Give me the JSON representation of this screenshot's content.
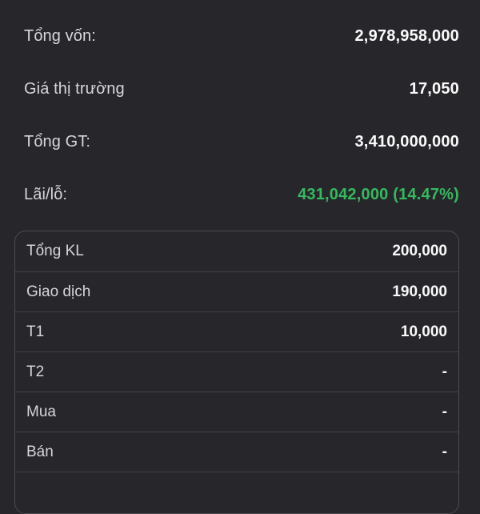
{
  "colors": {
    "bg": "#26262b",
    "label": "#d6d6da",
    "value": "#fafafa",
    "green": "#35b95f",
    "border": "#4a4a50",
    "divider": "#414147"
  },
  "summary": {
    "rows": [
      {
        "label": "Tổng vốn:",
        "value": "2,978,958,000"
      },
      {
        "label": "Giá thị trường",
        "value": "17,050"
      },
      {
        "label": "Tổng GT:",
        "value": "3,410,000,000"
      },
      {
        "label": "Lãi/lỗ:",
        "value": "431,042,000 (14.47%)"
      }
    ]
  },
  "table": {
    "rows": [
      {
        "label": "Tổng KL",
        "value": "200,000"
      },
      {
        "label": "Giao dịch",
        "value": "190,000"
      },
      {
        "label": "T1",
        "value": "10,000"
      },
      {
        "label": "T2",
        "value": "-"
      },
      {
        "label": "Mua",
        "value": "-"
      },
      {
        "label": "Bán",
        "value": "-"
      }
    ]
  }
}
